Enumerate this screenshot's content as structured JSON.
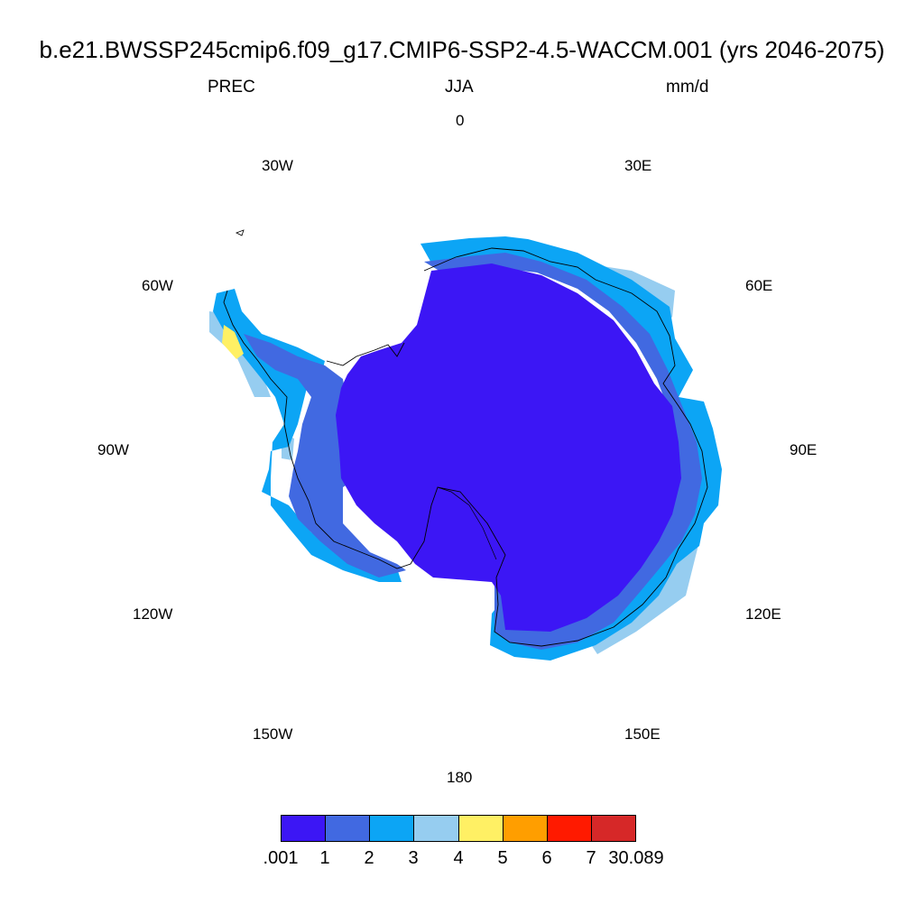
{
  "header": {
    "title": "b.e21.BWSSP245cmip6.f09_g17.CMIP6-SSP2-4.5-WACCM.001 (yrs 2046-2075)",
    "variable": "PREC",
    "season": "JJA",
    "units": "mm/d"
  },
  "longitude_labels": {
    "lon_0": "0",
    "lon_30e": "30E",
    "lon_60e": "60E",
    "lon_90e": "90E",
    "lon_120e": "120E",
    "lon_150e": "150E",
    "lon_180": "180",
    "lon_150w": "150W",
    "lon_120w": "120W",
    "lon_90w": "90W",
    "lon_60w": "60W",
    "lon_30w": "30W"
  },
  "map": {
    "projection": "south polar stereographic",
    "region": "Antarctica",
    "interior_value_class": ".001-1",
    "coastal_value_classes": [
      "1-2",
      "2-3",
      "3-4"
    ],
    "max_class_on_peninsula": "4-5"
  },
  "colorbar": {
    "colors": [
      "#3c16f5",
      "#4169e1",
      "#0ca5f5",
      "#96cdf0",
      "#fff064",
      "#ff9e00",
      "#ff1a00",
      "#d62828"
    ],
    "labels": [
      ".001",
      "1",
      "2",
      "3",
      "4",
      "5",
      "6",
      "7",
      "30.089"
    ]
  }
}
